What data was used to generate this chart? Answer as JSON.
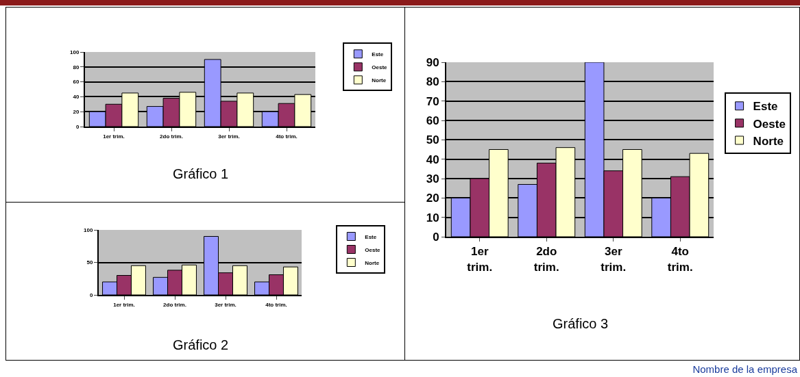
{
  "chart_data": [
    {
      "type": "bar",
      "categories": [
        "1er trim.",
        "2do trim.",
        "3er trim.",
        "4to trim."
      ],
      "series": [
        {
          "name": "Este",
          "color": "#9999ff",
          "values": [
            20,
            27,
            90,
            20
          ]
        },
        {
          "name": "Oeste",
          "color": "#993366",
          "values": [
            30,
            38,
            34,
            31
          ]
        },
        {
          "name": "Norte",
          "color": "#ffffcc",
          "values": [
            45,
            46,
            45,
            43
          ]
        }
      ],
      "ylim": [
        0,
        100
      ],
      "yticks": [
        0,
        20,
        40,
        60,
        80,
        100
      ],
      "grid": "y",
      "legend": "right",
      "annotations": [
        "Gráfico 1"
      ]
    },
    {
      "type": "bar",
      "categories": [
        "1er trim.",
        "2do trim.",
        "3er trim.",
        "4to trim."
      ],
      "series": [
        {
          "name": "Este",
          "color": "#9999ff",
          "values": [
            20,
            27,
            90,
            20
          ]
        },
        {
          "name": "Oeste",
          "color": "#993366",
          "values": [
            30,
            38,
            34,
            31
          ]
        },
        {
          "name": "Norte",
          "color": "#ffffcc",
          "values": [
            45,
            46,
            45,
            43
          ]
        }
      ],
      "ylim": [
        0,
        100
      ],
      "yticks": [
        0,
        50,
        100
      ],
      "grid": "y",
      "legend": "right",
      "annotations": [
        "Gráfico 2"
      ]
    },
    {
      "type": "bar",
      "categories": [
        "1er trim.",
        "2do trim.",
        "3er trim.",
        "4to trim."
      ],
      "series": [
        {
          "name": "Este",
          "color": "#9999ff",
          "values": [
            20,
            27,
            90,
            20
          ]
        },
        {
          "name": "Oeste",
          "color": "#993366",
          "values": [
            30,
            38,
            34,
            31
          ]
        },
        {
          "name": "Norte",
          "color": "#ffffcc",
          "values": [
            45,
            46,
            45,
            43
          ]
        }
      ],
      "ylim": [
        0,
        90
      ],
      "yticks": [
        0,
        10,
        20,
        30,
        40,
        50,
        60,
        70,
        80,
        90
      ],
      "grid": "y",
      "legend": "right",
      "annotations": [
        "Gráfico 3",
        "Nombre de la empresa"
      ]
    }
  ]
}
